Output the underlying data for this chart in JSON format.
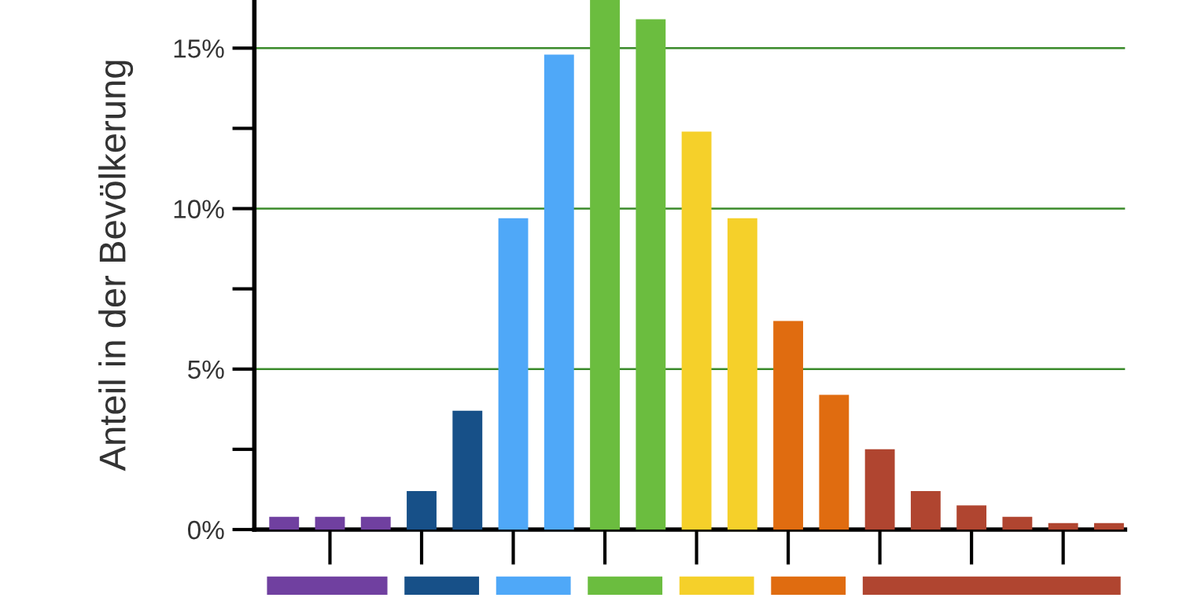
{
  "chart_data": {
    "type": "bar",
    "ylabel": "Anteil in der Bevölkerung",
    "categories": [
      null,
      null,
      null,
      null,
      null,
      null,
      null,
      null,
      null,
      null,
      null,
      null,
      null,
      null,
      null,
      null,
      null,
      null,
      null
    ],
    "values": [
      0.4,
      0.4,
      0.4,
      1.2,
      3.7,
      9.7,
      14.8,
      16.5,
      15.9,
      12.4,
      9.7,
      6.5,
      4.2,
      2.5,
      1.2,
      0.75,
      0.4,
      0.2,
      0.2
    ],
    "colors": [
      "#7040a0",
      "#7040a0",
      "#7040a0",
      "#175088",
      "#175088",
      "#4fa8f8",
      "#4fa8f8",
      "#6bbd3f",
      "#6bbd3f",
      "#f5d02a",
      "#f5d02a",
      "#e06c10",
      "#e06c10",
      "#b04530",
      "#b04530",
      "#b04530",
      "#b04530",
      "#b04530",
      "#b04530"
    ],
    "ylim": [
      0,
      16.5
    ],
    "yticks": [
      {
        "value": 0,
        "label": "0%"
      },
      {
        "value": 2.5,
        "label": null
      },
      {
        "value": 5,
        "label": "5%"
      },
      {
        "value": 7.5,
        "label": null
      },
      {
        "value": 10,
        "label": "10%"
      },
      {
        "value": 12.5,
        "label": null
      },
      {
        "value": 15,
        "label": "15%"
      }
    ],
    "grid": "y"
  }
}
